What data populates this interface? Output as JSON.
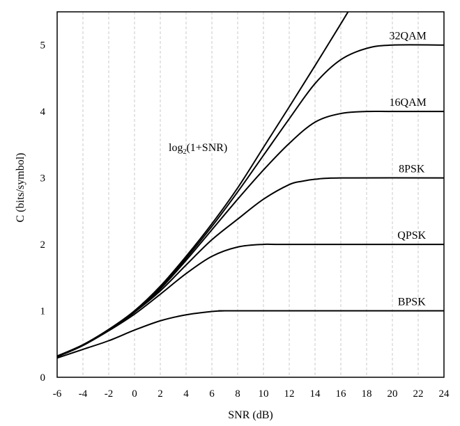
{
  "chart_data": {
    "type": "line",
    "xlabel": "SNR (dB)",
    "ylabel": "C (bits/symbol)",
    "xlim": [
      -6,
      24
    ],
    "ylim": [
      0,
      5.5
    ],
    "xticks": [
      "-6",
      "-4",
      "-2",
      "0",
      "2",
      "4",
      "6",
      "8",
      "10",
      "12",
      "14",
      "16",
      "18",
      "20",
      "22",
      "24"
    ],
    "yticks": [
      "0",
      "1",
      "2",
      "3",
      "4",
      "5"
    ],
    "grid": "vertical dashed",
    "annotation": {
      "text": "log",
      "sub": "2",
      "rest": "(1+SNR)"
    },
    "series": [
      {
        "name": "log2(1+SNR)",
        "x": [
          -6,
          -4,
          -2,
          0,
          2,
          4,
          6,
          8,
          10,
          12,
          14,
          16,
          17
        ],
        "y": [
          0.32,
          0.49,
          0.72,
          1.0,
          1.37,
          1.82,
          2.31,
          2.85,
          3.46,
          4.07,
          4.69,
          5.32,
          5.64
        ]
      },
      {
        "name": "32QAM",
        "x": [
          -6,
          -4,
          -2,
          0,
          2,
          4,
          6,
          8,
          10,
          12,
          14,
          16,
          18,
          20,
          24
        ],
        "y": [
          0.31,
          0.48,
          0.71,
          0.99,
          1.35,
          1.79,
          2.27,
          2.79,
          3.34,
          3.89,
          4.42,
          4.78,
          4.95,
          5.0,
          5.0
        ]
      },
      {
        "name": "16QAM",
        "x": [
          -6,
          -4,
          -2,
          0,
          2,
          4,
          6,
          8,
          10,
          12,
          14,
          16,
          18,
          20,
          24
        ],
        "y": [
          0.31,
          0.48,
          0.71,
          0.98,
          1.33,
          1.76,
          2.22,
          2.68,
          3.12,
          3.52,
          3.84,
          3.97,
          4.0,
          4.0,
          4.0
        ]
      },
      {
        "name": "8PSK",
        "x": [
          -6,
          -4,
          -2,
          0,
          2,
          4,
          6,
          8,
          10,
          12,
          13,
          14,
          16,
          24
        ],
        "y": [
          0.31,
          0.48,
          0.71,
          0.98,
          1.3,
          1.69,
          2.07,
          2.38,
          2.68,
          2.9,
          2.95,
          2.98,
          3.0,
          3.0
        ]
      },
      {
        "name": "QPSK",
        "x": [
          -6,
          -4,
          -2,
          0,
          2,
          4,
          6,
          8,
          10,
          12,
          24
        ],
        "y": [
          0.31,
          0.48,
          0.7,
          0.95,
          1.25,
          1.56,
          1.82,
          1.96,
          2.0,
          2.0,
          2.0
        ]
      },
      {
        "name": "BPSK",
        "x": [
          -6,
          -4,
          -2,
          0,
          2,
          4,
          6,
          7,
          8,
          24
        ],
        "y": [
          0.29,
          0.42,
          0.55,
          0.71,
          0.85,
          0.94,
          0.99,
          1.0,
          1.0,
          1.0
        ]
      }
    ],
    "labels": [
      {
        "text": "32QAM",
        "series": "32QAM"
      },
      {
        "text": "16QAM",
        "series": "16QAM"
      },
      {
        "text": "8PSK",
        "series": "8PSK"
      },
      {
        "text": "QPSK",
        "series": "QPSK"
      },
      {
        "text": "BPSK",
        "series": "BPSK"
      }
    ]
  }
}
